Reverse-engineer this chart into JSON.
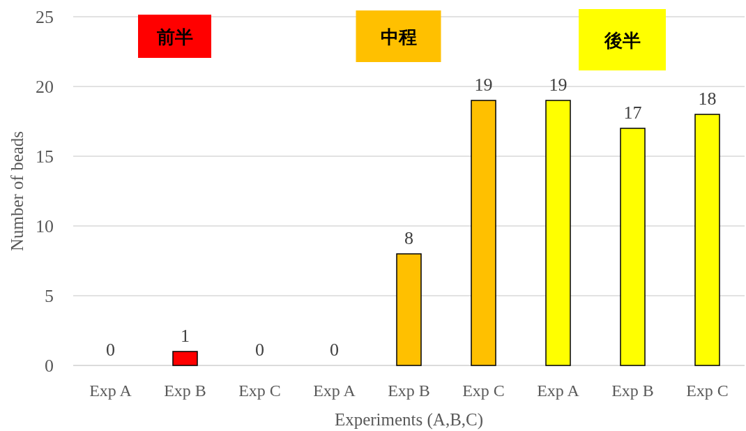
{
  "chart_data": {
    "type": "bar",
    "xlabel": "Experiments (A,B,C)",
    "ylabel": "Number of beads",
    "categories": [
      "Exp A",
      "Exp B",
      "Exp C",
      "Exp A",
      "Exp B",
      "Exp C",
      "Exp A",
      "Exp B",
      "Exp C"
    ],
    "values": [
      0,
      1,
      0,
      0,
      8,
      19,
      19,
      17,
      18
    ],
    "colors": [
      "#ff0000",
      "#ff0000",
      "#ff0000",
      "#ffc000",
      "#ffc000",
      "#ffc000",
      "#ffff00",
      "#ffff00",
      "#ffff00"
    ],
    "ylim": [
      0,
      25
    ],
    "yticks": [
      0,
      5,
      10,
      15,
      20,
      25
    ],
    "grid": "y",
    "data_labels": true,
    "annotations": [
      "前半",
      "中程",
      "後半"
    ]
  }
}
